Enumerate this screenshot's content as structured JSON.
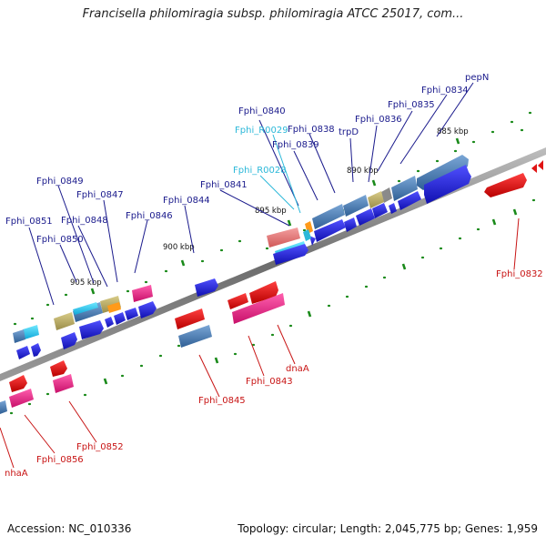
{
  "title": "Francisella philomiragia subsp. philomiragia ATCC 25017, com...",
  "footer": {
    "accession_label": "Accession:",
    "accession": "NC_010336",
    "topology_label": "Topology:",
    "topology": "circular",
    "length_label": "Length:",
    "length": "2,045,775 bp",
    "genes_label": "Genes:",
    "genes": "1,959"
  },
  "scale_labels": [
    "885 kbp",
    "890 kbp",
    "895 kbp",
    "900 kbp",
    "905 kbp"
  ],
  "top_labels": [
    "pepN",
    "Fphi_0834",
    "Fphi_0835",
    "Fphi_0836",
    "trpD",
    "Fphi_0838",
    "Fphi_0839",
    "Fphi_0840",
    "Fphi_0841",
    "Fphi_0844",
    "Fphi_0846",
    "Fphi_0847",
    "Fphi_0848",
    "Fphi_0849",
    "Fphi_0850",
    "Fphi_0851"
  ],
  "rna_labels": [
    "Fphi_R0029",
    "Fphi_R0028"
  ],
  "bottom_labels": [
    "Fphi_0832",
    "dnaA",
    "Fphi_0843",
    "Fphi_0845",
    "Fphi_0852",
    "Fphi_0856",
    "nhaA"
  ],
  "colors": {
    "forward_cds": "#1f1fe0",
    "reverse_cds": "#e01414",
    "rna": "#33ccee",
    "backbone": "#777777",
    "tick": "#1a8a1a",
    "magenta_feature": "#e0287a"
  }
}
